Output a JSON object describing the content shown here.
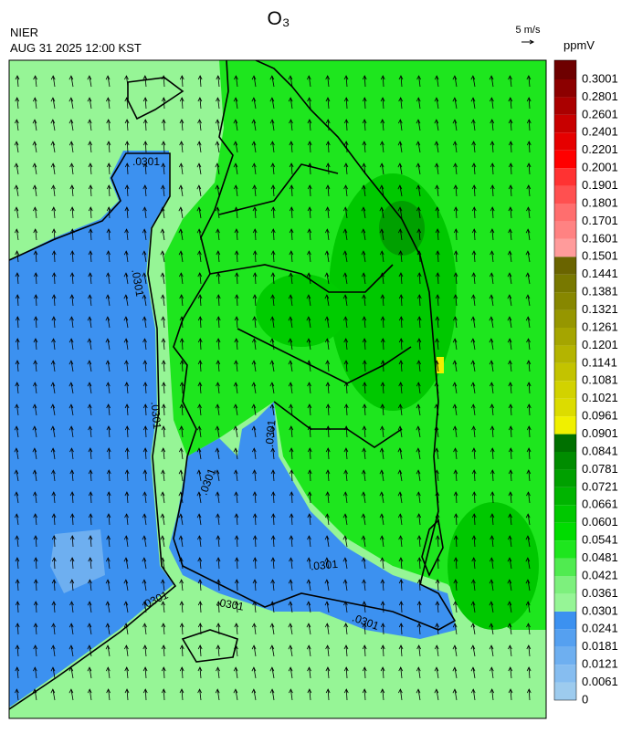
{
  "header": {
    "agency": "NIER",
    "timestamp": "AUG 31 2025 12:00 KST",
    "title": "O₃",
    "wind_scale": "5 m/s",
    "unit": "ppmV"
  },
  "contour_labels": [
    ".0301",
    ".0301",
    ".0301",
    ".0301",
    ".0301",
    ".0301",
    ".0301",
    ".0301",
    ".0301"
  ],
  "legend": {
    "labels": [
      0,
      0.0061,
      0.0121,
      0.0181,
      0.0241,
      0.0301,
      0.0361,
      0.0421,
      0.0481,
      0.0541,
      0.0601,
      0.0661,
      0.0721,
      0.0781,
      0.0841,
      0.0901,
      0.0961,
      0.1021,
      0.1081,
      0.1141,
      0.1201,
      0.1261,
      0.1321,
      0.1381,
      0.1441,
      0.1501,
      0.1601,
      0.1701,
      0.1801,
      0.1901,
      0.2001,
      0.2201,
      0.2401,
      0.2601,
      0.2801,
      0.3001
    ],
    "colors": [
      "#9dcbee",
      "#86bdf0",
      "#6eaff0",
      "#55a0f0",
      "#3c91f0",
      "#96f596",
      "#7df07d",
      "#50eb50",
      "#1ee61e",
      "#00dc00",
      "#00c800",
      "#00b400",
      "#00a000",
      "#008c00",
      "#007000",
      "#f0f000",
      "#dcdc00",
      "#d2d200",
      "#c3c300",
      "#b4b400",
      "#a5a500",
      "#969600",
      "#878700",
      "#787800",
      "#6a6400",
      "#ff9b9b",
      "#ff8282",
      "#ff6e6e",
      "#ff5050",
      "#ff3232",
      "#ff0000",
      "#e60000",
      "#c80000",
      "#aa0000",
      "#8c0000",
      "#6e0000"
    ]
  }
}
